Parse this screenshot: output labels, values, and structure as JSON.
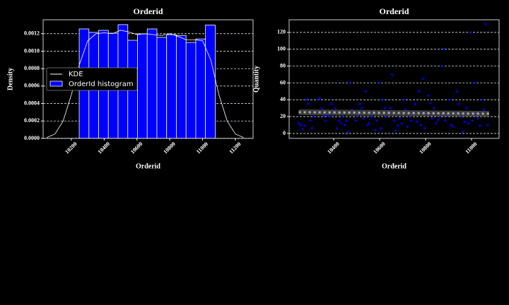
{
  "chart_data": [
    {
      "type": "histogram",
      "title": "Orderid",
      "xlabel": "Orderid",
      "ylabel": "Density",
      "name": "OrderId histogram",
      "color": "#0000ff",
      "bins": [
        10248,
        10307.2,
        10366.4,
        10425.6,
        10484.9,
        10544.1,
        10603.3,
        10662.5,
        10721.7,
        10780.9,
        10840.1,
        10899.4,
        10958.6,
        11017.8,
        11077
      ],
      "values": [
        0.001255,
        0.001215,
        0.001239,
        0.001206,
        0.001304,
        0.001125,
        0.001198,
        0.001255,
        0.001158,
        0.00119,
        0.00118,
        0.0011,
        0.00114,
        0.0013
      ],
      "kde": {
        "name": "KDE",
        "color": "#ffffff",
        "x": [
          10050,
          10100,
          10150,
          10200,
          10250,
          10300,
          10350,
          10400,
          10450,
          10500,
          10550,
          10600,
          10650,
          10700,
          10750,
          10800,
          10850,
          10900,
          10950,
          11000,
          11050,
          11100,
          11150,
          11200,
          11250
        ],
        "values": [
          1e-05,
          5e-05,
          0.0002,
          0.0005,
          0.00085,
          0.00112,
          0.0012,
          0.00121,
          0.0012,
          0.00124,
          0.00122,
          0.00119,
          0.0012,
          0.00119,
          0.00118,
          0.0012,
          0.00117,
          0.00113,
          0.00113,
          0.00112,
          0.0009,
          0.0005,
          0.0002,
          5e-05,
          1e-05
        ]
      },
      "xlim": [
        10028,
        11308
      ],
      "ylim": [
        0,
        0.00136
      ],
      "xticks": [
        10200,
        10400,
        10600,
        10800,
        11000,
        11200
      ],
      "yticks": [
        {
          "value": 0,
          "label": "0.0000"
        },
        {
          "value": 0.0002,
          "label": "0.0002"
        },
        {
          "value": 0.0004,
          "label": "0.0004"
        },
        {
          "value": 0.0006,
          "label": "0.0006"
        },
        {
          "value": 0.0008,
          "label": "0.0008"
        },
        {
          "value": 0.001,
          "label": "0.0010"
        },
        {
          "value": 0.0012,
          "label": "0.0012"
        }
      ],
      "grid": true,
      "legend": "center left"
    },
    {
      "type": "scatter",
      "title": "Orderid",
      "xlabel": "Orderid",
      "ylabel": "Quantity",
      "color": "#0000ff",
      "x": [
        10248,
        10256,
        10265,
        10273,
        10281,
        10290,
        10298,
        10306,
        10314,
        10323,
        10331,
        10339,
        10348,
        10356,
        10364,
        10373,
        10381,
        10389,
        10397,
        10406,
        10414,
        10422,
        10431,
        10439,
        10447,
        10456,
        10464,
        10472,
        10480,
        10489,
        10497,
        10505,
        10514,
        10522,
        10530,
        10539,
        10547,
        10555,
        10563,
        10572,
        10580,
        10588,
        10597,
        10605,
        10613,
        10622,
        10630,
        10638,
        10646,
        10655,
        10663,
        10671,
        10680,
        10688,
        10696,
        10705,
        10713,
        10721,
        10729,
        10738,
        10746,
        10754,
        10763,
        10771,
        10779,
        10788,
        10796,
        10804,
        10812,
        10821,
        10829,
        10837,
        10846,
        10854,
        10862,
        10871,
        10879,
        10887,
        10895,
        10904,
        10912,
        10920,
        10929,
        10937,
        10945,
        10954,
        10962,
        10970,
        10978,
        10987,
        10995,
        11003,
        11012,
        11020,
        11028,
        11037,
        11045,
        11053,
        11061,
        11070
      ],
      "values": [
        12,
        10,
        5,
        9,
        40,
        35,
        15,
        6,
        20,
        25,
        40,
        42,
        30,
        21,
        15,
        21,
        20,
        35,
        25,
        30,
        6,
        15,
        12,
        20,
        10,
        15,
        2,
        60,
        28,
        25,
        15,
        21,
        35,
        30,
        18,
        50,
        10,
        12,
        20,
        24,
        4,
        15,
        60,
        6,
        40,
        30,
        20,
        25,
        30,
        70,
        15,
        3,
        9,
        18,
        12,
        40,
        28,
        8,
        20,
        15,
        25,
        35,
        14,
        50,
        10,
        65,
        6,
        24,
        45,
        36,
        18,
        30,
        12,
        16,
        20,
        80,
        100,
        15,
        21,
        40,
        10,
        8,
        25,
        50,
        35,
        20,
        2,
        14,
        30,
        12,
        120,
        15,
        60,
        24,
        18,
        9,
        40,
        28,
        130,
        10
      ],
      "trend": {
        "color": "#aaaaaa",
        "x": [
          10248,
          11077
        ],
        "values": [
          25.2,
          23.4
        ]
      },
      "xlim": [
        10206,
        11120
      ],
      "ylim": [
        -5.9,
        135
      ],
      "xticks": [
        10400,
        10600,
        10800,
        11000
      ],
      "yticks": [
        0,
        20,
        40,
        60,
        80,
        100,
        120
      ],
      "grid": true
    }
  ]
}
